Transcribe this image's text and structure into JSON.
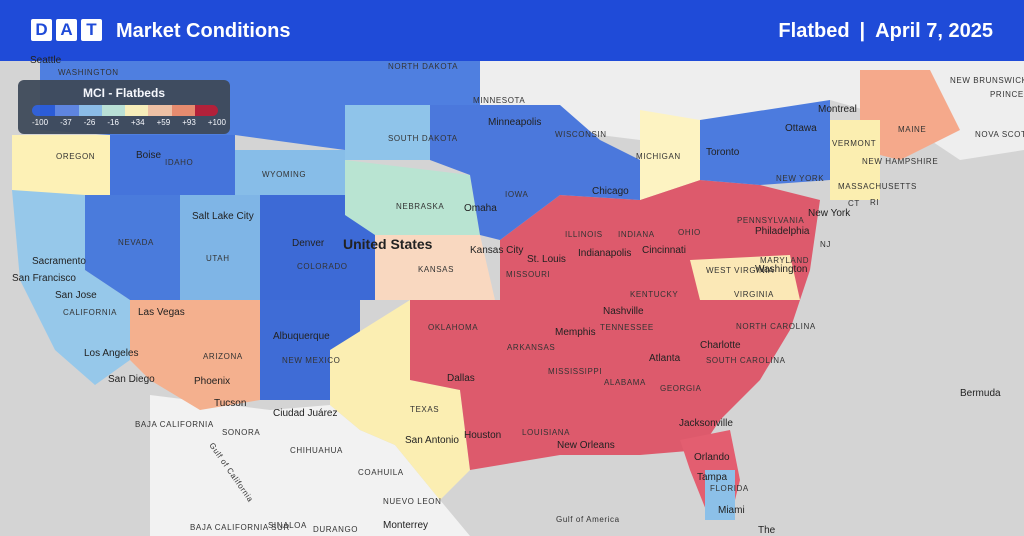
{
  "header": {
    "logo_letters": [
      "D",
      "A",
      "T"
    ],
    "title": "Market Conditions",
    "mode": "Flatbed",
    "separator": "|",
    "date": "April 7, 2025",
    "bg_color": "#1f4bd8"
  },
  "legend": {
    "title": "MCI - Flatbeds",
    "ticks": [
      "-100",
      "-37",
      "-26",
      "-16",
      "+34",
      "+59",
      "+93",
      "+100"
    ],
    "colors": [
      "#2a5bd7",
      "#5f86e0",
      "#8fc0e8",
      "#bfe6d6",
      "#fff3b8",
      "#f6c4a2",
      "#ef8c6a",
      "#b81c32"
    ]
  },
  "map_labels": {
    "country": "United States",
    "states": [
      "WASHINGTON",
      "NORTH DAKOTA",
      "MINNESOTA",
      "OREGON",
      "IDAHO",
      "SOUTH DAKOTA",
      "WISCONSIN",
      "MICHIGAN",
      "WYOMING",
      "NEBRASKA",
      "IOWA",
      "NEVADA",
      "UTAH",
      "COLORADO",
      "KANSAS",
      "MISSOURI",
      "ILLINOIS",
      "INDIANA",
      "OHIO",
      "CALIFORNIA",
      "ARIZONA",
      "NEW MEXICO",
      "OKLAHOMA",
      "ARKANSAS",
      "TENNESSEE",
      "KENTUCKY",
      "WEST VIRGINIA",
      "VIRGINIA",
      "NORTH CAROLINA",
      "SOUTH CAROLINA",
      "GEORGIA",
      "ALABAMA",
      "MISSISSIPPI",
      "LOUISIANA",
      "TEXAS",
      "FLORIDA",
      "PENNSYLVANIA",
      "NEW YORK",
      "MAINE",
      "VERMONT",
      "NEW HAMPSHIRE",
      "MASSACHUSETTS",
      "MARYLAND",
      "NJ",
      "CT",
      "RI",
      "NEW BRUNSWICK",
      "PRINCE EDWARD",
      "NOVA SCOTIA",
      "BAJA CALIFORNIA",
      "SONORA",
      "CHIHUAHUA",
      "COAHUILA",
      "NUEVO LEON",
      "SINALOA",
      "DURANGO",
      "BAJA CALIFORNIA SUR"
    ],
    "cities": [
      "Seattle",
      "Boise",
      "Sacramento",
      "San Francisco",
      "San Jose",
      "Salt Lake City",
      "Las Vegas",
      "Los Angeles",
      "San Diego",
      "Phoenix",
      "Tucson",
      "Albuquerque",
      "Denver",
      "Ciudad Juárez",
      "Minneapolis",
      "Omaha",
      "Kansas City",
      "St. Louis",
      "Chicago",
      "Indianapolis",
      "Cincinnati",
      "Nashville",
      "Memphis",
      "Dallas",
      "San Antonio",
      "Houston",
      "New Orleans",
      "Atlanta",
      "Charlotte",
      "Washington",
      "Philadelphia",
      "New York",
      "Toronto",
      "Ottawa",
      "Montreal",
      "Jacksonville",
      "Orlando",
      "Tampa",
      "Miami",
      "Monterrey",
      "Bermuda",
      "The"
    ],
    "water": [
      "Gulf of California",
      "Gulf of America"
    ]
  }
}
